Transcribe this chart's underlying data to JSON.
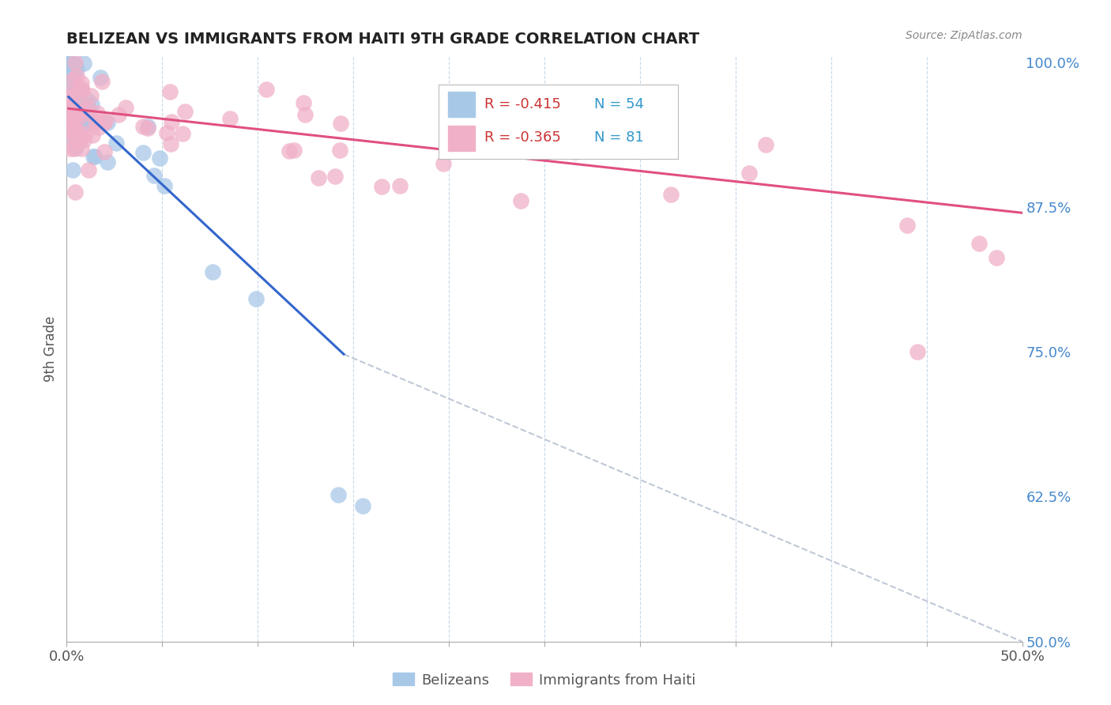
{
  "title": "BELIZEAN VS IMMIGRANTS FROM HAITI 9TH GRADE CORRELATION CHART",
  "source_text": "Source: ZipAtlas.com",
  "xlabel_belizean": "Belizeans",
  "xlabel_haiti": "Immigrants from Haiti",
  "ylabel": "9th Grade",
  "xlim": [
    0.0,
    0.5
  ],
  "ylim": [
    0.5,
    1.005
  ],
  "r_belizean": -0.415,
  "n_belizean": 54,
  "r_haiti": -0.365,
  "n_haiti": 81,
  "color_belizean": "#a8c8e8",
  "color_haiti": "#f0b0c8",
  "color_line_belizean": "#3366cc",
  "color_line_haiti": "#e05080",
  "color_dashed": "#c0c8d8",
  "legend_color_r": "#cc0000",
  "legend_color_n": "#3399cc",
  "background_color": "#ffffff",
  "grid_color": "#c8d8e8",
  "title_color": "#222222",
  "blue_line_x": [
    0.001,
    0.145
  ],
  "blue_line_y": [
    0.97,
    0.748
  ],
  "pink_line_x": [
    0.001,
    0.5
  ],
  "pink_line_y": [
    0.96,
    0.87
  ],
  "dash_line_x": [
    0.145,
    0.5
  ],
  "dash_line_y": [
    0.748,
    0.5
  ]
}
